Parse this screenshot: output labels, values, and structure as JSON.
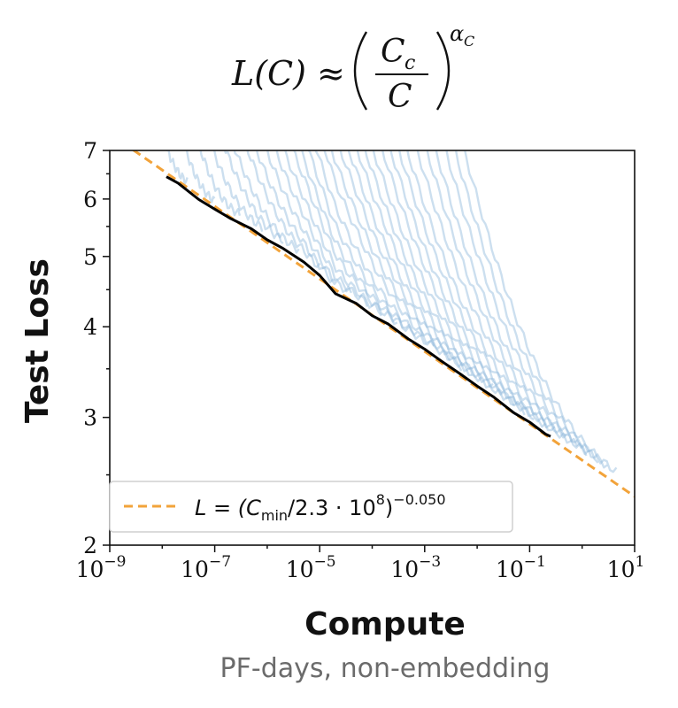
{
  "equation": {
    "lhs": "L(C)",
    "approx": "≈",
    "numerator": "C",
    "numerator_sub": "c",
    "denominator": "C",
    "exponent": "α",
    "exponent_sub": "C"
  },
  "chart_data": {
    "type": "line",
    "xscale": "log",
    "yscale": "log",
    "xlim": [
      1e-09,
      10
    ],
    "ylim": [
      2,
      7
    ],
    "xlabel": "Compute",
    "xsublabel": "PF-days, non-embedding",
    "ylabel": "Test Loss",
    "yticks": [
      2,
      3,
      4,
      5,
      6,
      7
    ],
    "ytick_labels": [
      "2",
      "3",
      "4",
      "5",
      "6",
      "7"
    ],
    "xticks": [
      {
        "value": 1e-09,
        "base": "10",
        "exp": "−9"
      },
      {
        "value": 1e-07,
        "base": "10",
        "exp": "−7"
      },
      {
        "value": 1e-05,
        "base": "10",
        "exp": "−5"
      },
      {
        "value": 0.001,
        "base": "10",
        "exp": "−3"
      },
      {
        "value": 0.1,
        "base": "10",
        "exp": "−1"
      },
      {
        "value": 10,
        "base": "10",
        "exp": "1"
      }
    ],
    "legend": {
      "placement": "lower-left",
      "entries": [
        {
          "label_prefix": "L = (C",
          "label_sub": "min",
          "label_mid": "/2.3 · 10",
          "label_sup8": "8",
          "label_close": ")",
          "label_sup": "−0.050",
          "style": "dashed",
          "color": "#f2a33a"
        }
      ]
    },
    "fit": {
      "c": 230000000.0,
      "alpha": 0.05,
      "color": "#f2a33a"
    },
    "frontier": {
      "color": "#000000",
      "points": [
        [
          1.2e-08,
          6.45
        ],
        [
          2e-08,
          6.3
        ],
        [
          5e-08,
          6.0
        ],
        [
          1e-07,
          5.8
        ],
        [
          2e-07,
          5.65
        ],
        [
          5e-07,
          5.45
        ],
        [
          1e-06,
          5.28
        ],
        [
          2e-06,
          5.12
        ],
        [
          5e-06,
          4.92
        ],
        [
          1e-05,
          4.7
        ],
        [
          2e-05,
          4.45
        ],
        [
          5e-05,
          4.3
        ],
        [
          0.0001,
          4.15
        ],
        [
          0.0002,
          4.03
        ],
        [
          0.0005,
          3.85
        ],
        [
          0.001,
          3.72
        ],
        [
          0.002,
          3.6
        ],
        [
          0.005,
          3.43
        ],
        [
          0.01,
          3.32
        ],
        [
          0.02,
          3.2
        ],
        [
          0.05,
          3.05
        ],
        [
          0.1,
          2.95
        ],
        [
          0.2,
          2.85
        ],
        [
          0.25,
          2.82
        ]
      ]
    },
    "runs": {
      "color": "#8fb9dc",
      "series": [
        {
          "start": 1e-09,
          "end": 3e-08
        },
        {
          "start": 2e-09,
          "end": 1e-07
        },
        {
          "start": 3e-09,
          "end": 3e-07
        },
        {
          "start": 4e-09,
          "end": 8e-07
        },
        {
          "start": 6e-09,
          "end": 2e-06
        },
        {
          "start": 8e-09,
          "end": 4e-06
        },
        {
          "start": 1.2e-08,
          "end": 1e-05
        },
        {
          "start": 1.6e-08,
          "end": 2e-05
        },
        {
          "start": 2.5e-08,
          "end": 4e-05
        },
        {
          "start": 3.5e-08,
          "end": 8e-05
        },
        {
          "start": 5e-08,
          "end": 0.00015
        },
        {
          "start": 7e-08,
          "end": 0.0003
        },
        {
          "start": 1e-07,
          "end": 0.0005
        },
        {
          "start": 1.5e-07,
          "end": 0.0009
        },
        {
          "start": 2.5e-07,
          "end": 0.0015
        },
        {
          "start": 4e-07,
          "end": 0.003
        },
        {
          "start": 6e-07,
          "end": 0.005
        },
        {
          "start": 1e-06,
          "end": 0.008
        },
        {
          "start": 1.6e-06,
          "end": 0.012
        },
        {
          "start": 2.5e-06,
          "end": 0.02
        },
        {
          "start": 4e-06,
          "end": 0.03
        },
        {
          "start": 6e-06,
          "end": 0.05
        },
        {
          "start": 1e-05,
          "end": 0.08
        },
        {
          "start": 1.6e-05,
          "end": 0.12
        },
        {
          "start": 2.5e-05,
          "end": 0.2
        },
        {
          "start": 4e-05,
          "end": 0.3
        },
        {
          "start": 7e-05,
          "end": 0.5
        },
        {
          "start": 0.00012,
          "end": 0.8
        },
        {
          "start": 0.0002,
          "end": 1.2
        },
        {
          "start": 0.00035,
          "end": 2
        },
        {
          "start": 0.0006,
          "end": 3
        },
        {
          "start": 0.001,
          "end": 4.5
        }
      ]
    }
  }
}
